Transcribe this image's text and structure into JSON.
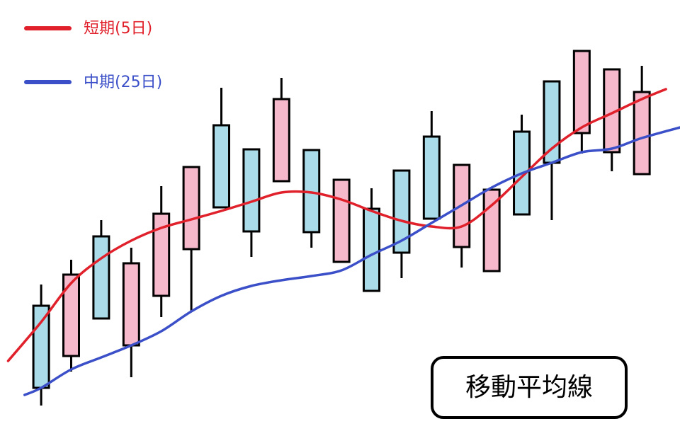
{
  "chart_data": {
    "type": "candlestick",
    "annotation": "移動平均線",
    "xlim": [
      -0.37,
      22.27
    ],
    "ylim": [
      0,
      633
    ],
    "up_color": "#a9dbe8",
    "down_color": "#f6b8cb",
    "x": [
      1,
      2,
      3,
      4,
      5,
      6,
      7,
      8,
      9,
      10,
      11,
      12,
      13,
      14,
      15,
      16,
      17,
      18,
      19,
      20,
      21
    ],
    "open": [
      85,
      245,
      183,
      261,
      331,
      397,
      340,
      306,
      493,
      305,
      379,
      222,
      276,
      324,
      400,
      365,
      330,
      403,
      561,
      535,
      503
    ],
    "high": [
      231,
      266,
      322,
      283,
      370,
      397,
      509,
      422,
      523,
      421,
      379,
      367,
      392,
      476,
      400,
      365,
      471,
      518,
      561,
      535,
      540
    ],
    "low": [
      60,
      108,
      183,
      100,
      185,
      193,
      340,
      270,
      377,
      283,
      263,
      222,
      240,
      324,
      255,
      250,
      330,
      322,
      416,
      391,
      387
    ],
    "close": [
      201,
      130,
      299,
      145,
      215,
      281,
      456,
      422,
      377,
      421,
      263,
      338,
      392,
      440,
      284,
      250,
      447,
      518,
      445,
      418,
      387
    ],
    "series": [
      {
        "name": "短期(5日)",
        "color": "#e0202a",
        "x": [
          -0.1,
          1,
          2,
          3,
          4,
          5,
          6,
          7,
          8,
          9,
          10,
          11,
          12,
          13,
          14,
          15,
          16,
          17,
          18,
          19,
          20,
          21,
          21.8
        ],
        "values": [
          123,
          178,
          233,
          268,
          293,
          311,
          323,
          335,
          348,
          361,
          361,
          351,
          335,
          321,
          313,
          313,
          343,
          383,
          423,
          453,
          473,
          493,
          507
        ]
      },
      {
        "name": "中期(25日)",
        "color": "#3b4fc8",
        "x": [
          0.45,
          1,
          2,
          3,
          4,
          5,
          6,
          7,
          8,
          9,
          10,
          11,
          12,
          13,
          14,
          15,
          16,
          17,
          18,
          19,
          20,
          21,
          22.27
        ],
        "values": [
          75,
          85,
          111,
          128,
          145,
          165,
          193,
          215,
          229,
          237,
          243,
          251,
          273,
          293,
          318,
          343,
          368,
          388,
          403,
          418,
          423,
          438,
          453
        ]
      }
    ]
  }
}
